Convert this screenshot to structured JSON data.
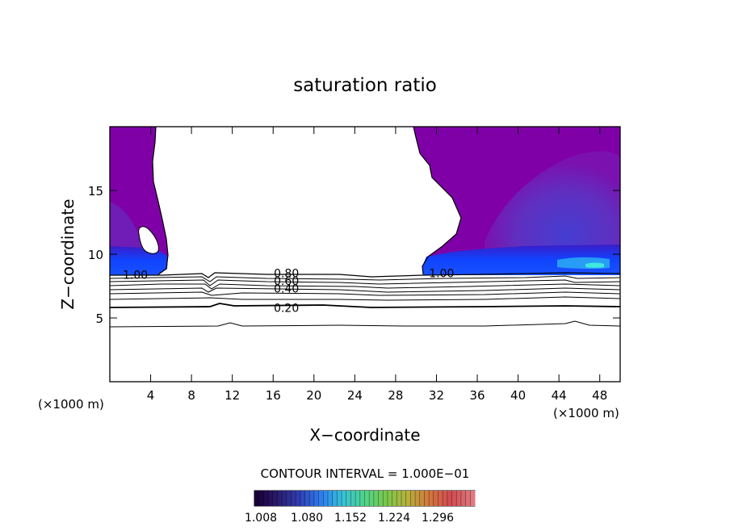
{
  "chart_data": {
    "type": "heatmap",
    "title": "saturation ratio",
    "xlabel": "X−coordinate",
    "ylabel": "Z−coordinate",
    "x_unit_left": "(×1000 m)",
    "x_unit_right": "(×1000 m)",
    "xlim": [
      0,
      50
    ],
    "ylim": [
      0,
      20
    ],
    "x_ticks": [
      4,
      8,
      12,
      16,
      20,
      24,
      28,
      32,
      36,
      40,
      44,
      48
    ],
    "y_ticks": [
      5,
      10,
      15
    ],
    "contour_note": "CONTOUR INTERVAL = 1.000E−01",
    "contour_labels": [
      {
        "text": "1.00",
        "x": 2.5,
        "z": 8.4
      },
      {
        "text": "0.80",
        "x": 17.3,
        "z": 8.5
      },
      {
        "text": "0.60",
        "x": 17.3,
        "z": 7.9
      },
      {
        "text": "0.40",
        "x": 17.3,
        "z": 7.3
      },
      {
        "text": "0.20",
        "x": 17.3,
        "z": 5.8
      },
      {
        "text": "1.00",
        "x": 32.5,
        "z": 8.5
      }
    ],
    "colorbar_ticks": [
      "1.008",
      "1.080",
      "1.152",
      "1.224",
      "1.296"
    ],
    "colorbar_colors": [
      "#1a0038",
      "#2a1d6e",
      "#2f3fb5",
      "#2f7ff0",
      "#36c2d8",
      "#4fd48a",
      "#79c84a",
      "#b7b03c",
      "#d2763c",
      "#d24a52",
      "#e07a80"
    ],
    "region_colors": {
      "base": "#8000a8",
      "mid": "#6a2cc0",
      "deep": "#4b3cc8",
      "band": "#1040ff",
      "bright": "#36b4f0",
      "cyan": "#40e8e0"
    }
  }
}
